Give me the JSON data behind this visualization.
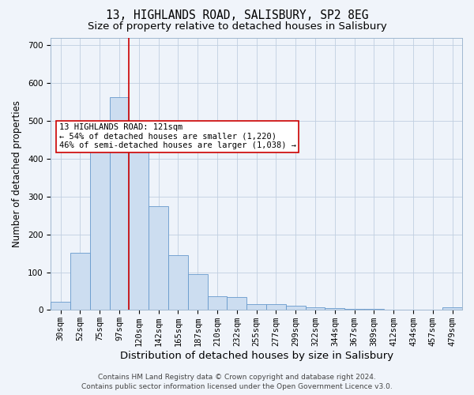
{
  "title": "13, HIGHLANDS ROAD, SALISBURY, SP2 8EG",
  "subtitle": "Size of property relative to detached houses in Salisbury",
  "xlabel": "Distribution of detached houses by size in Salisbury",
  "ylabel": "Number of detached properties",
  "categories": [
    "30sqm",
    "52sqm",
    "75sqm",
    "97sqm",
    "120sqm",
    "142sqm",
    "165sqm",
    "187sqm",
    "210sqm",
    "232sqm",
    "255sqm",
    "277sqm",
    "299sqm",
    "322sqm",
    "344sqm",
    "367sqm",
    "389sqm",
    "412sqm",
    "434sqm",
    "457sqm",
    "479sqm"
  ],
  "values": [
    22,
    152,
    487,
    562,
    443,
    275,
    144,
    94,
    36,
    35,
    15,
    15,
    11,
    8,
    5,
    4,
    4,
    0,
    0,
    0,
    7
  ],
  "bar_color": "#ccddf0",
  "bar_edge_color": "#6699cc",
  "vline_color": "#cc0000",
  "annotation_text": "13 HIGHLANDS ROAD: 121sqm\n← 54% of detached houses are smaller (1,220)\n46% of semi-detached houses are larger (1,038) →",
  "annotation_box_color": "white",
  "annotation_box_edge_color": "#cc0000",
  "footer_line1": "Contains HM Land Registry data © Crown copyright and database right 2024.",
  "footer_line2": "Contains public sector information licensed under the Open Government Licence v3.0.",
  "background_color": "#f0f4fa",
  "plot_bg_color": "#eef3fa",
  "ylim": [
    0,
    720
  ],
  "yticks": [
    0,
    100,
    200,
    300,
    400,
    500,
    600,
    700
  ],
  "title_fontsize": 10.5,
  "subtitle_fontsize": 9.5,
  "xlabel_fontsize": 9.5,
  "ylabel_fontsize": 8.5,
  "tick_fontsize": 7.5,
  "annotation_fontsize": 7.5,
  "footer_fontsize": 6.5
}
